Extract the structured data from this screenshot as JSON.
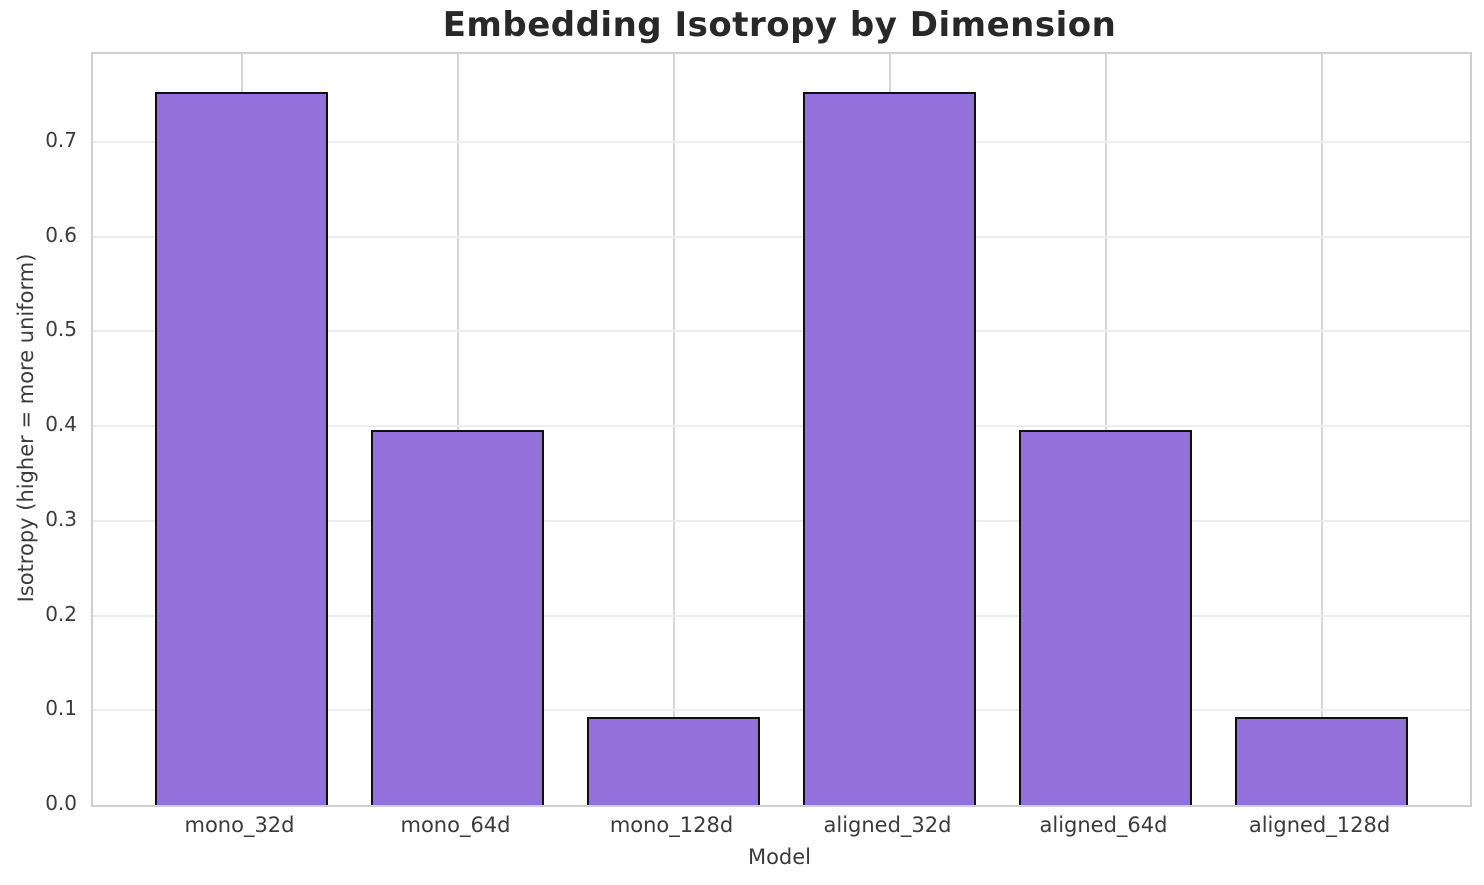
{
  "chart_data": {
    "type": "bar",
    "title": "Embedding Isotropy by Dimension",
    "xlabel": "Model",
    "ylabel": "Isotropy (higher = more uniform)",
    "categories": [
      "mono_32d",
      "mono_64d",
      "mono_128d",
      "aligned_32d",
      "aligned_64d",
      "aligned_128d"
    ],
    "values": [
      0.753,
      0.396,
      0.093,
      0.753,
      0.396,
      0.093
    ],
    "ylim": [
      0,
      0.793
    ],
    "yticks": [
      0.0,
      0.1,
      0.2,
      0.3,
      0.4,
      0.5,
      0.6,
      0.7
    ],
    "ytick_labels": [
      "0.0",
      "0.1",
      "0.2",
      "0.3",
      "0.4",
      "0.5",
      "0.6",
      "0.7"
    ],
    "grid": true,
    "legend": "none",
    "bar_color": "#9370DB",
    "bar_edge_color": "#0f0f0f",
    "grid_color_horizontal": "#ececec",
    "grid_color_vertical": "#d8d8d8",
    "spine_color": "#cfcfcf",
    "text_color": "#3b3b3b",
    "title_color": "#282828",
    "background_color": "#ffffff"
  }
}
